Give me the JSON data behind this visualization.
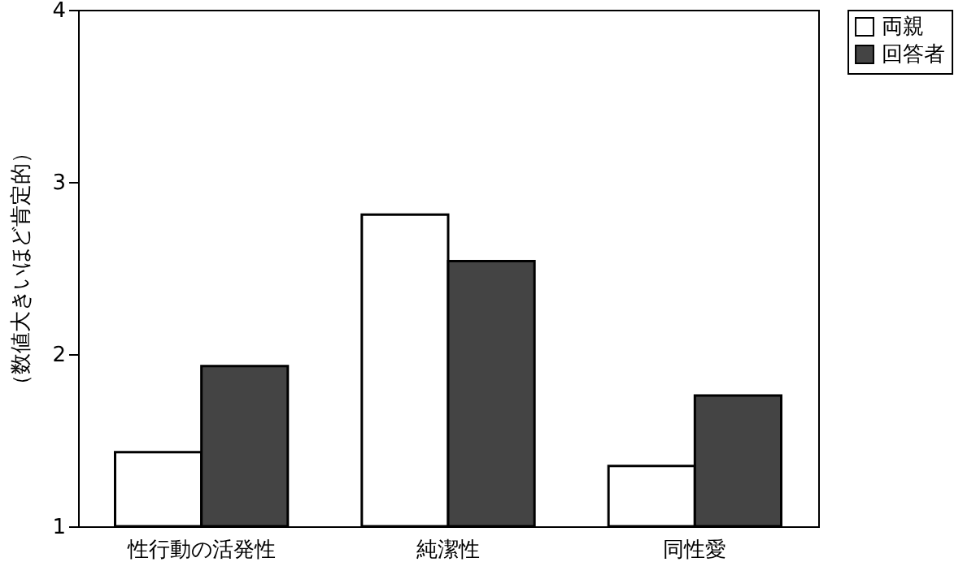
{
  "chart_data": {
    "type": "bar",
    "ylabel": "（数値大きいほど肯定的）",
    "categories": [
      "性行動の活発性",
      "純潔性",
      "同性愛"
    ],
    "series": [
      {
        "name": "両親",
        "color": "#ffffff",
        "values": [
          1.43,
          2.81,
          1.35
        ]
      },
      {
        "name": "回答者",
        "color": "#444444",
        "values": [
          1.93,
          2.54,
          1.76
        ]
      }
    ],
    "ylim": [
      1,
      4
    ],
    "yticks": [
      1,
      2,
      3,
      4
    ],
    "grid": false,
    "legend": "right"
  }
}
